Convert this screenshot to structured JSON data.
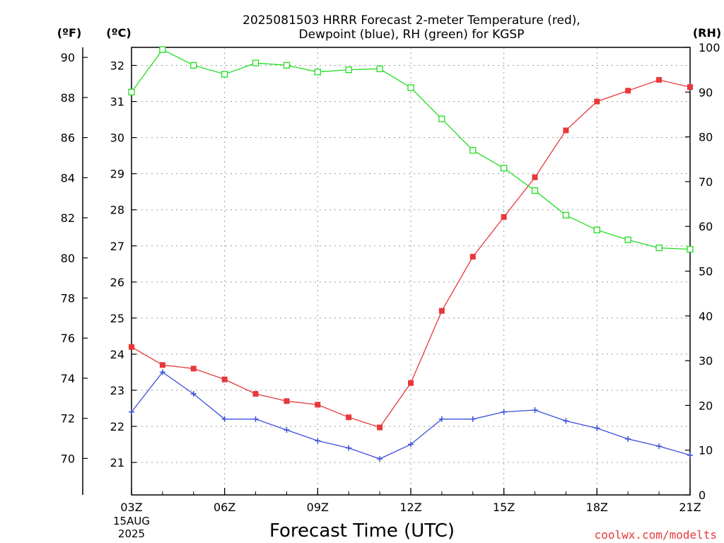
{
  "chart_data": {
    "type": "line",
    "title_line1": "2025081503 HRRR Forecast 2-meter Temperature (red),",
    "title_line2": "Dewpoint (blue), RH (green) for KGSP",
    "xlabel": "Forecast Time (UTC)",
    "unit_f": "(ºF)",
    "unit_c": "(ºC)",
    "unit_rh": "(RH)",
    "date_label_line1": "15AUG",
    "date_label_line2": "2025",
    "credit": "coolwx.com/modelts",
    "x_hours": [
      3,
      4,
      5,
      6,
      7,
      8,
      9,
      10,
      11,
      12,
      13,
      14,
      15,
      16,
      17,
      18,
      19,
      20,
      21
    ],
    "x_ticks": [
      {
        "hour": 3,
        "label": "03Z"
      },
      {
        "hour": 6,
        "label": "06Z"
      },
      {
        "hour": 9,
        "label": "09Z"
      },
      {
        "hour": 12,
        "label": "12Z"
      },
      {
        "hour": 15,
        "label": "15Z"
      },
      {
        "hour": 18,
        "label": "18Z"
      },
      {
        "hour": 21,
        "label": "21Z"
      }
    ],
    "temp_axis_c": {
      "min": 20.1,
      "max": 32.5,
      "ticks": [
        21,
        22,
        23,
        24,
        25,
        26,
        27,
        28,
        29,
        30,
        31,
        32
      ]
    },
    "temp_axis_f": {
      "ticks": [
        70,
        72,
        74,
        76,
        78,
        80,
        82,
        84,
        86,
        88,
        90
      ]
    },
    "rh_axis": {
      "min": 0,
      "max": 100,
      "ticks": [
        0,
        10,
        20,
        30,
        40,
        50,
        60,
        70,
        80,
        90,
        100
      ]
    },
    "grid": true,
    "series": [
      {
        "name": "2-meter Temperature",
        "unit": "C",
        "color": "#e8383a",
        "marker": "filled-square",
        "values": [
          24.2,
          23.7,
          23.6,
          23.3,
          22.9,
          22.7,
          22.6,
          22.25,
          21.97,
          23.2,
          25.2,
          26.7,
          27.8,
          28.9,
          30.2,
          31.0,
          31.3,
          31.6,
          31.4
        ]
      },
      {
        "name": "Dewpoint",
        "unit": "C",
        "color": "#3b4fd8",
        "marker": "plus",
        "values": [
          22.4,
          23.5,
          22.9,
          22.2,
          22.2,
          21.9,
          21.6,
          21.4,
          21.1,
          21.5,
          22.2,
          22.2,
          22.4,
          22.45,
          22.15,
          21.95,
          21.65,
          21.45,
          21.2
        ]
      },
      {
        "name": "RH",
        "unit": "%",
        "color": "#22dd22",
        "marker": "open-square",
        "values": [
          90,
          99.5,
          96,
          94,
          96.5,
          96,
          94.5,
          95,
          95.2,
          91,
          84,
          77,
          73,
          68,
          62.5,
          59.2,
          57,
          55.2,
          54.9
        ]
      }
    ]
  }
}
